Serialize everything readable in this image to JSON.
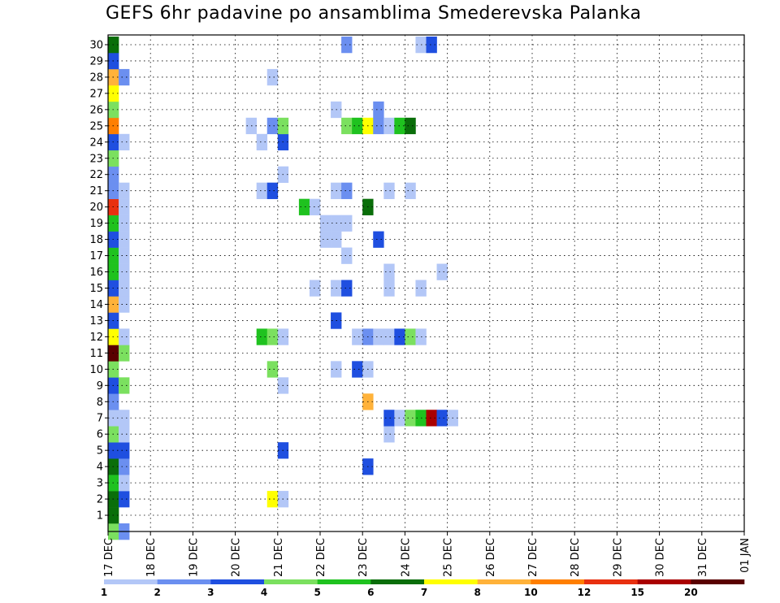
{
  "chart_data": {
    "type": "heatmap",
    "title": "GEFS 6hr padavine po ansamblima Smederevska Palanka",
    "x_tick_labels": [
      "17 DEC",
      "18 DEC",
      "19 DEC",
      "20 DEC",
      "21 DEC",
      "22 DEC",
      "23 DEC",
      "24 DEC",
      "25 DEC",
      "26 DEC",
      "27 DEC",
      "28 DEC",
      "29 DEC",
      "30 DEC",
      "31 DEC",
      "01 JAN"
    ],
    "y_tick_labels": [
      "1",
      "2",
      "3",
      "4",
      "5",
      "6",
      "7",
      "8",
      "9",
      "10",
      "11",
      "12",
      "13",
      "14",
      "15",
      "16",
      "17",
      "18",
      "19",
      "20",
      "21",
      "22",
      "23",
      "24",
      "25",
      "26",
      "27",
      "28",
      "29",
      "30"
    ],
    "steps_per_day": 4,
    "ylim": [
      0,
      30
    ],
    "grid": true,
    "colorbar": {
      "labels": [
        "1",
        "2",
        "3",
        "4",
        "5",
        "6",
        "7",
        "8",
        "10",
        "12",
        "15",
        "20"
      ],
      "colors": [
        "#b3c7f7",
        "#6b8ff0",
        "#1f4fe0",
        "#7be05f",
        "#1fc21f",
        "#0a6e0a",
        "#ffff00",
        "#ffb23a",
        "#ff7f00",
        "#e83010",
        "#aa0000",
        "#5a0000"
      ]
    },
    "cells_note": "each cell: [member, time_step_index_from_17DEC_00UTC, colour_class_index]",
    "cells": [
      [
        0,
        0,
        3
      ],
      [
        0,
        1,
        1
      ],
      [
        1,
        0,
        5
      ],
      [
        2,
        0,
        5
      ],
      [
        2,
        1,
        2
      ],
      [
        2,
        15,
        6
      ],
      [
        2,
        16,
        0
      ],
      [
        3,
        0,
        4
      ],
      [
        3,
        1,
        0
      ],
      [
        4,
        0,
        5
      ],
      [
        4,
        1,
        1
      ],
      [
        4,
        24,
        2
      ],
      [
        5,
        0,
        2
      ],
      [
        5,
        1,
        2
      ],
      [
        5,
        16,
        2
      ],
      [
        6,
        0,
        3
      ],
      [
        6,
        1,
        0
      ],
      [
        6,
        26,
        0
      ],
      [
        7,
        0,
        0
      ],
      [
        7,
        1,
        0
      ],
      [
        7,
        26,
        2
      ],
      [
        7,
        27,
        0
      ],
      [
        7,
        28,
        3
      ],
      [
        7,
        29,
        4
      ],
      [
        7,
        30,
        10
      ],
      [
        7,
        31,
        2
      ],
      [
        7,
        32,
        0
      ],
      [
        8,
        0,
        1
      ],
      [
        8,
        24,
        7
      ],
      [
        9,
        0,
        2
      ],
      [
        9,
        1,
        3
      ],
      [
        9,
        16,
        0
      ],
      [
        10,
        0,
        3
      ],
      [
        10,
        15,
        3
      ],
      [
        10,
        21,
        0
      ],
      [
        10,
        23,
        2
      ],
      [
        10,
        24,
        0
      ],
      [
        11,
        0,
        11
      ],
      [
        11,
        1,
        3
      ],
      [
        12,
        0,
        6
      ],
      [
        12,
        1,
        0
      ],
      [
        12,
        14,
        4
      ],
      [
        12,
        15,
        3
      ],
      [
        12,
        16,
        0
      ],
      [
        12,
        23,
        0
      ],
      [
        12,
        24,
        1
      ],
      [
        12,
        25,
        0
      ],
      [
        12,
        26,
        0
      ],
      [
        12,
        27,
        2
      ],
      [
        12,
        28,
        3
      ],
      [
        12,
        29,
        0
      ],
      [
        13,
        0,
        2
      ],
      [
        13,
        21,
        2
      ],
      [
        14,
        0,
        7
      ],
      [
        14,
        1,
        0
      ],
      [
        15,
        0,
        2
      ],
      [
        15,
        1,
        0
      ],
      [
        15,
        19,
        0
      ],
      [
        15,
        21,
        0
      ],
      [
        15,
        22,
        2
      ],
      [
        15,
        26,
        0
      ],
      [
        15,
        29,
        0
      ],
      [
        16,
        0,
        4
      ],
      [
        16,
        1,
        0
      ],
      [
        16,
        26,
        0
      ],
      [
        16,
        31,
        0
      ],
      [
        17,
        0,
        4
      ],
      [
        17,
        1,
        0
      ],
      [
        17,
        22,
        0
      ],
      [
        18,
        0,
        2
      ],
      [
        18,
        1,
        0
      ],
      [
        18,
        20,
        0
      ],
      [
        18,
        21,
        0
      ],
      [
        18,
        25,
        2
      ],
      [
        19,
        0,
        4
      ],
      [
        19,
        1,
        0
      ],
      [
        19,
        20,
        0
      ],
      [
        19,
        21,
        0
      ],
      [
        19,
        22,
        0
      ],
      [
        20,
        0,
        9
      ],
      [
        20,
        1,
        0
      ],
      [
        20,
        18,
        4
      ],
      [
        20,
        19,
        0
      ],
      [
        20,
        24,
        5
      ],
      [
        21,
        0,
        1
      ],
      [
        21,
        1,
        0
      ],
      [
        21,
        14,
        0
      ],
      [
        21,
        15,
        2
      ],
      [
        21,
        21,
        0
      ],
      [
        21,
        22,
        1
      ],
      [
        21,
        26,
        0
      ],
      [
        21,
        28,
        0
      ],
      [
        22,
        0,
        1
      ],
      [
        22,
        16,
        0
      ],
      [
        23,
        0,
        3
      ],
      [
        24,
        0,
        2
      ],
      [
        24,
        1,
        0
      ],
      [
        24,
        14,
        0
      ],
      [
        24,
        16,
        2
      ],
      [
        25,
        0,
        8
      ],
      [
        25,
        13,
        0
      ],
      [
        25,
        15,
        1
      ],
      [
        25,
        16,
        3
      ],
      [
        25,
        22,
        3
      ],
      [
        25,
        23,
        4
      ],
      [
        25,
        24,
        6
      ],
      [
        25,
        25,
        1
      ],
      [
        25,
        26,
        0
      ],
      [
        25,
        27,
        4
      ],
      [
        25,
        28,
        5
      ],
      [
        26,
        0,
        3
      ],
      [
        26,
        21,
        0
      ],
      [
        26,
        25,
        1
      ],
      [
        27,
        0,
        6
      ],
      [
        28,
        0,
        7
      ],
      [
        28,
        1,
        1
      ],
      [
        28,
        15,
        0
      ],
      [
        29,
        0,
        2
      ],
      [
        30,
        0,
        5
      ],
      [
        30,
        22,
        1
      ],
      [
        30,
        29,
        0
      ],
      [
        30,
        30,
        2
      ]
    ]
  }
}
